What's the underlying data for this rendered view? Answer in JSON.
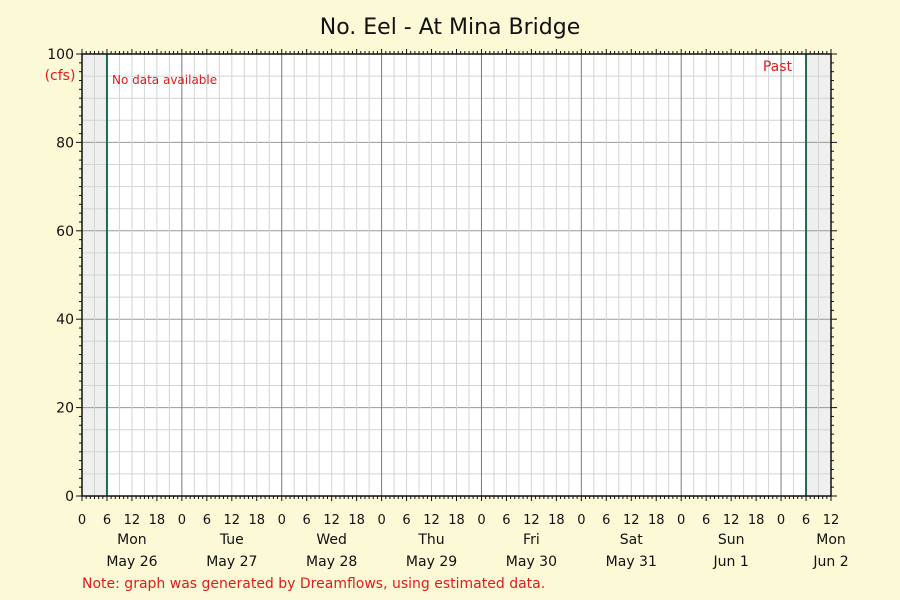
{
  "chart_data": {
    "type": "line",
    "title": "No. Eel - At Mina Bridge",
    "ylabel": "(cfs)",
    "ylim": [
      0,
      100
    ],
    "yticks": [
      0,
      20,
      40,
      60,
      80,
      100
    ],
    "xlim": [
      "2025-05-26T00:00",
      "2025-06-02T12:00"
    ],
    "x_tick_hours": [
      "0",
      "6",
      "12",
      "18"
    ],
    "days": [
      {
        "weekday": "Mon",
        "date": "May 26"
      },
      {
        "weekday": "Tue",
        "date": "May 27"
      },
      {
        "weekday": "Wed",
        "date": "May 28"
      },
      {
        "weekday": "Thu",
        "date": "May 29"
      },
      {
        "weekday": "Fri",
        "date": "May 30"
      },
      {
        "weekday": "Sat",
        "date": "May 31"
      },
      {
        "weekday": "Sun",
        "date": "Jun 1"
      },
      {
        "weekday": "Mon",
        "date": "Jun 2"
      }
    ],
    "data_window": [
      "2025-05-26T06:00",
      "2025-06-02T06:00"
    ],
    "series": [],
    "grid": true,
    "annotations": {
      "no_data": "No data available",
      "past": "Past"
    },
    "note": "Note: graph was generated by Dreamflows, using estimated data."
  },
  "colors": {
    "background": "#fbf9d6",
    "plot_background": "#ffffff",
    "outside_window": "#efefef",
    "window_line": "#1f6b4e",
    "annotation": "#e21b1b"
  }
}
